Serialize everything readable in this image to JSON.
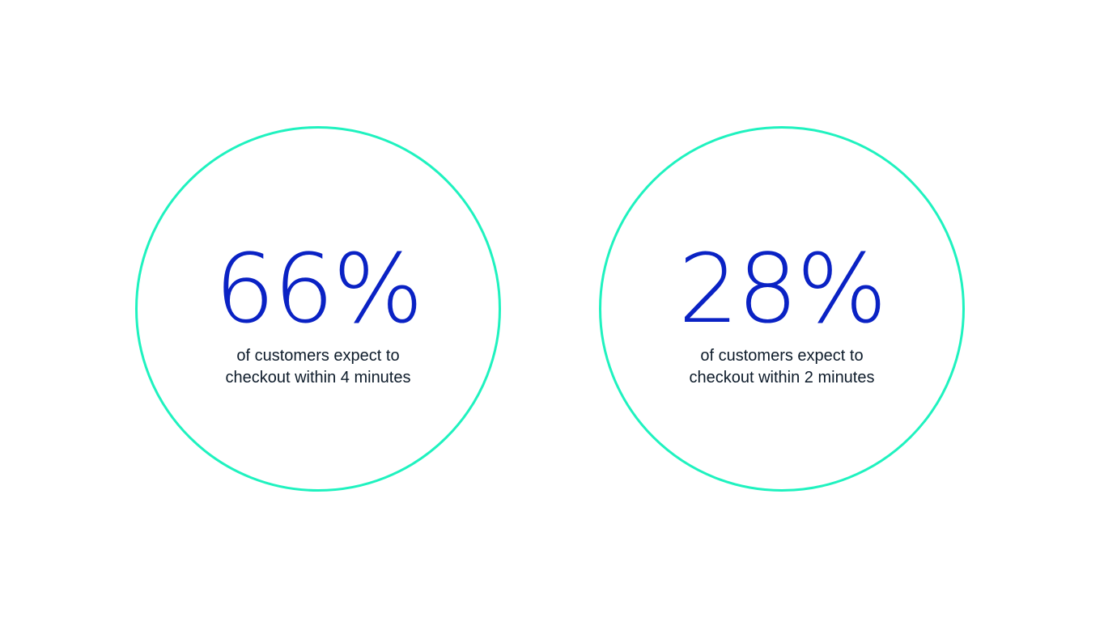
{
  "accent_color": "#1ff2bf",
  "number_color": "#0a22c4",
  "stats": [
    {
      "value": "66%",
      "caption_line1": "of customers expect to",
      "caption_line2": "checkout within 4 minutes"
    },
    {
      "value": "28%",
      "caption_line1": "of customers expect to",
      "caption_line2": "checkout within 2 minutes"
    }
  ]
}
